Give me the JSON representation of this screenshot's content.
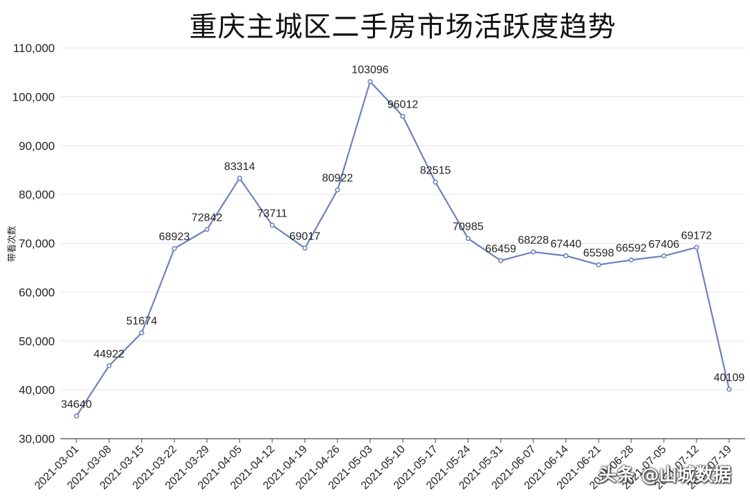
{
  "chart_data": {
    "type": "line",
    "title": "重庆主城区二手房市场活跃度趋势",
    "ylabel": "带看次数",
    "xlabel": "",
    "ylim": [
      30000,
      110000
    ],
    "yticks": [
      "30,000",
      "40,000",
      "50,000",
      "60,000",
      "70,000",
      "80,000",
      "90,000",
      "100,000",
      "110,000"
    ],
    "grid": true,
    "line_color": "#6a82bd",
    "categories": [
      "2021-03-01",
      "2021-03-08",
      "2021-03-15",
      "2021-03-22",
      "2021-03-29",
      "2021-04-05",
      "2021-04-12",
      "2021-04-19",
      "2021-04-26",
      "2021-05-03",
      "2021-05-10",
      "2021-05-17",
      "2021-05-24",
      "2021-05-31",
      "2021-06-07",
      "2021-06-14",
      "2021-06-21",
      "2021-06-28",
      "2021-07-05",
      "2021-07-12",
      "2021-07-19"
    ],
    "values": [
      34640,
      44922,
      51674,
      68923,
      72842,
      83314,
      73711,
      69017,
      80922,
      103096,
      96012,
      82515,
      70985,
      66459,
      68228,
      67440,
      65598,
      66592,
      67406,
      69172,
      40109
    ],
    "labels": [
      "34640",
      "44922",
      "51674",
      "68923",
      "72842",
      "83314",
      "73711",
      "69017",
      "80922",
      "103096",
      "96012",
      "82515",
      "70985",
      "66459",
      "68228",
      "67440",
      "65598",
      "66592",
      "67406",
      "69172",
      "40109"
    ]
  },
  "watermark": "头条 @山城数据"
}
